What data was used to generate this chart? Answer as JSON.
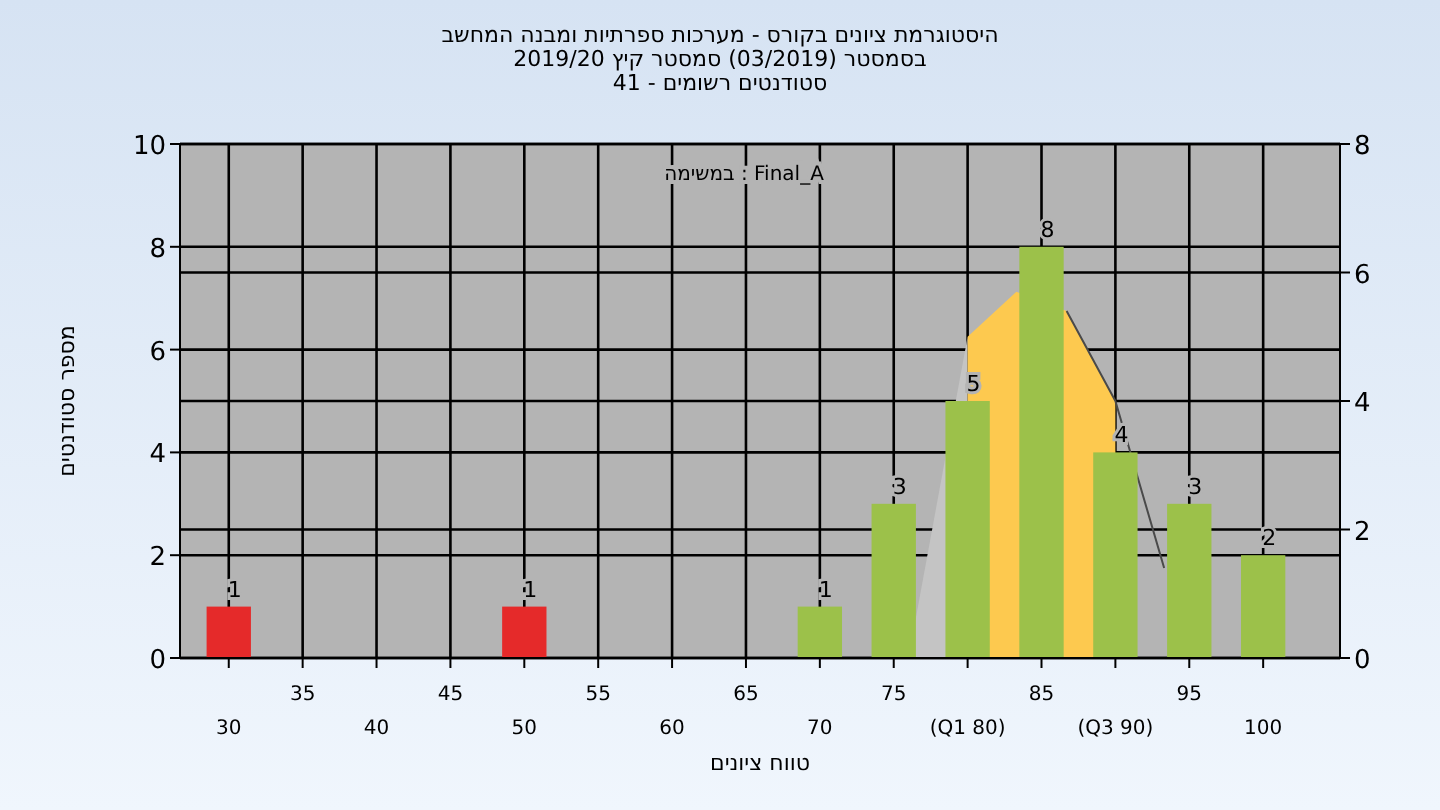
{
  "chart_data": {
    "type": "bar",
    "title": "היסטוגרמת ציונים בקורס - מערכות ספרתיות ומבנה המחשב",
    "subtitle": "בסמסטר (03/2019) סמסטר קיץ 2019/20\nסטודנטים רשומים - 41",
    "xlabel": "טווח ציונים",
    "ylabel": "מספר סטודנטים",
    "annotations": [
      "Final_A : במשימה"
    ],
    "series": [
      {
        "type": "area",
        "axis": "y2",
        "color": "#c4c4c4",
        "x": [
          76,
          80
        ],
        "values": [
          0,
          5
        ]
      },
      {
        "type": "area",
        "axis": "y2",
        "color": "#fdc94f",
        "x": [
          80,
          83.3,
          86.7,
          90
        ],
        "values": [
          5,
          5.7,
          5.4,
          4
        ]
      },
      {
        "type": "line",
        "axis": "y2",
        "color": "#4a4a4a",
        "x": [
          86.7,
          90,
          93.3
        ],
        "values": [
          5.4,
          4,
          1.4
        ]
      },
      {
        "x": [
          30,
          50,
          70,
          75,
          80,
          85,
          90,
          95,
          100
        ],
        "values": [
          1,
          1,
          1,
          3,
          5,
          8,
          4,
          3,
          2
        ],
        "value_labels": [
          "1",
          "1",
          "1",
          "3",
          "5",
          "8",
          "4",
          "3",
          "2"
        ],
        "colors": [
          "#e52a2a",
          "#e52a2a",
          "#9cc14a",
          "#9cc14a",
          "#9cc14a",
          "#9cc14a",
          "#9cc14a",
          "#9cc14a",
          "#9cc14a"
        ]
      }
    ],
    "xlim": [
      26.7,
      105.2
    ],
    "xticks": [
      30,
      {
        "value": 35,
        "label": null
      },
      40,
      {
        "value": 45,
        "label": null
      },
      50,
      {
        "value": 55,
        "label": null
      },
      60,
      {
        "value": 65,
        "label": null
      },
      70,
      {
        "value": 75,
        "label": null
      },
      {
        "value": 80,
        "label": "(Q1 80)"
      },
      {
        "value": 85,
        "label": null
      },
      {
        "value": 90,
        "label": "(Q3 90)"
      },
      {
        "value": 95,
        "label": null
      },
      100
    ],
    "x2lim": [
      26.7,
      105.2
    ],
    "x2ticks": [
      35,
      45,
      55,
      65,
      75,
      85,
      95
    ],
    "ylim": [
      0,
      10
    ],
    "yticks": [
      0,
      2,
      4,
      6,
      8,
      10
    ],
    "y2lim": [
      0,
      8
    ],
    "y2ticks": [
      0,
      2,
      4,
      6,
      8
    ],
    "grid": true
  }
}
